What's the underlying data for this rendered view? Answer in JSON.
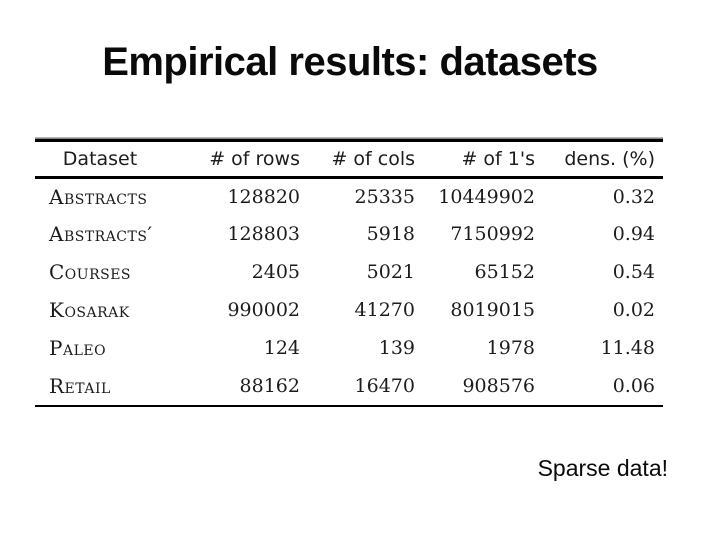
{
  "slide": {
    "title": "Empirical results: datasets",
    "note": "Sparse data!"
  },
  "table": {
    "headers": [
      "Dataset",
      "# of rows",
      "# of cols",
      "# of 1's",
      "dens. (%)"
    ],
    "rows": [
      [
        "Abstracts",
        "128820",
        "25335",
        "10449902",
        "0.32"
      ],
      [
        "Abstracts′",
        "128803",
        "5918",
        "7150992",
        "0.94"
      ],
      [
        "Courses",
        "2405",
        "5021",
        "65152",
        "0.54"
      ],
      [
        "Kosarak",
        "990002",
        "41270",
        "8019015",
        "0.02"
      ],
      [
        "Paleo",
        "124",
        "139",
        "1978",
        "11.48"
      ],
      [
        "Retail",
        "88162",
        "16470",
        "908576",
        "0.06"
      ]
    ]
  }
}
